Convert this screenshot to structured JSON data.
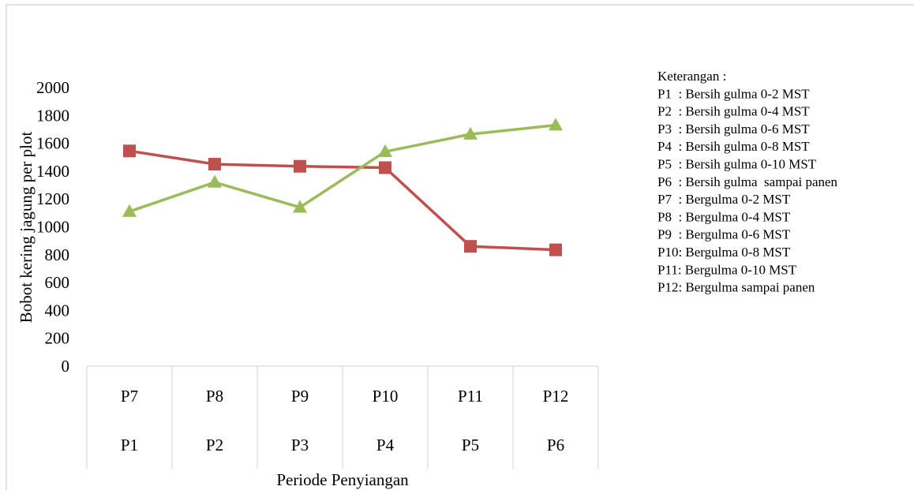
{
  "chart_data": {
    "type": "line",
    "title": "",
    "xlabel": "Periode Penyiangan",
    "ylabel": "Bobot kering jagung per plot",
    "ylim": [
      0,
      2000
    ],
    "yticks": [
      0,
      200,
      400,
      600,
      800,
      1000,
      1200,
      1400,
      1600,
      1800,
      2000
    ],
    "grid": false,
    "categories_row1": [
      "P7",
      "P8",
      "P9",
      "P10",
      "P11",
      "P12"
    ],
    "categories_row2": [
      "P1",
      "P2",
      "P3",
      "P4",
      "P5",
      "P6"
    ],
    "series": [
      {
        "color": "#c0504d",
        "marker": "square",
        "values": [
          1545,
          1450,
          1435,
          1425,
          860,
          835
        ]
      },
      {
        "color": "#9bbb59",
        "marker": "triangle",
        "values": [
          1110,
          1320,
          1140,
          1540,
          1665,
          1730
        ]
      }
    ],
    "legend": {
      "position": "right",
      "lines": [
        "Keterangan :",
        "P1  : Bersih gulma 0-2 MST",
        "P2  : Bersih gulma 0-4 MST",
        "P3  : Bersih gulma 0-6 MST",
        "P4  : Bersih gulma 0-8 MST",
        "P5  : Bersih gulma 0-10 MST",
        "P6  : Bersih gulma  sampai panen",
        "P7  : Bergulma 0-2 MST",
        "P8  : Bergulma 0-4 MST",
        "P9  : Bergulma 0-6 MST",
        "P10: Bergulma 0-8 MST",
        "P11: Bergulma 0-10 MST",
        "P12: Bergulma sampai panen"
      ]
    }
  }
}
